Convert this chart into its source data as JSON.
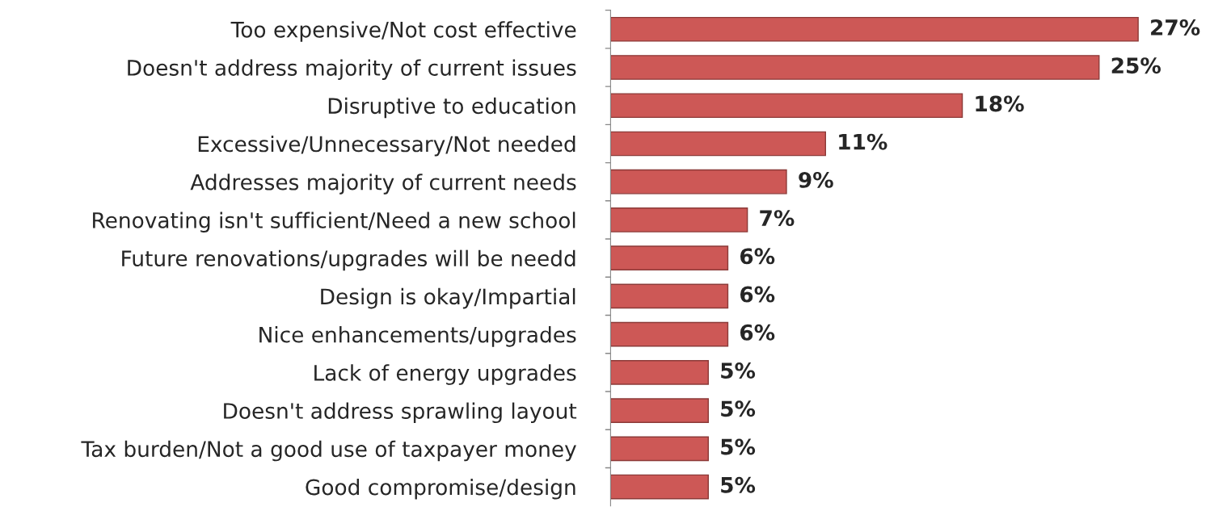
{
  "chart_data": {
    "type": "bar",
    "orientation": "horizontal",
    "categories": [
      "Too expensive/Not cost effective",
      "Doesn't address majority of current issues",
      "Disruptive to education",
      "Excessive/Unnecessary/Not needed",
      "Addresses majority of current needs",
      "Renovating isn't sufficient/Need a new school",
      "Future renovations/upgrades will be needd",
      "Design is okay/Impartial",
      "Nice enhancements/upgrades",
      "Lack of energy upgrades",
      "Doesn't address sprawling layout",
      "Tax burden/Not a good use of taxpayer money",
      "Good compromise/design"
    ],
    "values": [
      27,
      25,
      18,
      11,
      9,
      7,
      6,
      6,
      6,
      5,
      5,
      5,
      5
    ],
    "value_labels": [
      "27%",
      "25%",
      "18%",
      "11%",
      "9%",
      "7%",
      "6%",
      "6%",
      "6%",
      "5%",
      "5%",
      "5%",
      "5%"
    ],
    "color": "#cd5856",
    "grid": false,
    "legend": false
  }
}
